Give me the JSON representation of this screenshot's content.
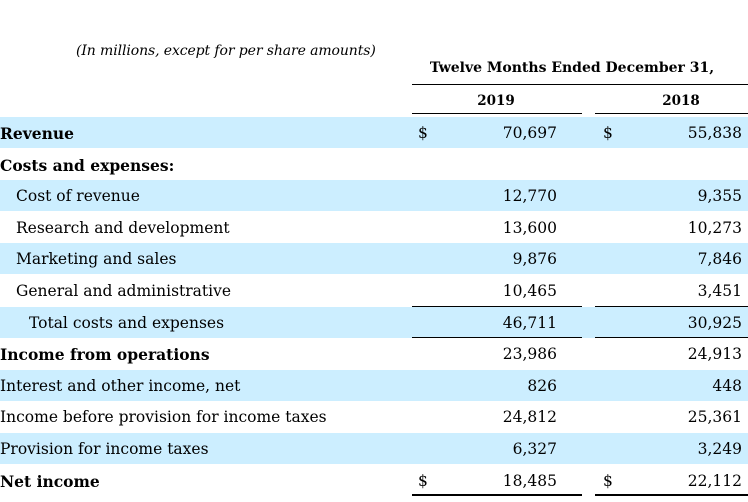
{
  "caption": "(In millions, except for per share amounts)",
  "period_header": "Twelve Months Ended December 31,",
  "years": [
    "2019",
    "2018"
  ],
  "rows": [
    {
      "label": "Revenue",
      "bold": true,
      "indent": 0,
      "shaded": true,
      "dollar": true,
      "v2019": "70,697",
      "v2018": "55,838"
    },
    {
      "label": "Costs and expenses:",
      "bold": true,
      "indent": 0,
      "shaded": false,
      "dollar": false,
      "v2019": "",
      "v2018": ""
    },
    {
      "label": "Cost of revenue",
      "bold": false,
      "indent": 1,
      "shaded": true,
      "dollar": false,
      "v2019": "12,770",
      "v2018": "9,355"
    },
    {
      "label": "Research and development",
      "bold": false,
      "indent": 1,
      "shaded": false,
      "dollar": false,
      "v2019": "13,600",
      "v2018": "10,273"
    },
    {
      "label": "Marketing and sales",
      "bold": false,
      "indent": 1,
      "shaded": true,
      "dollar": false,
      "v2019": "9,876",
      "v2018": "7,846"
    },
    {
      "label": "General and administrative",
      "bold": false,
      "indent": 1,
      "shaded": false,
      "dollar": false,
      "v2019": "10,465",
      "v2018": "3,451"
    },
    {
      "label": "Total costs and expenses",
      "bold": false,
      "indent": 2,
      "shaded": true,
      "dollar": false,
      "v2019": "46,711",
      "v2018": "30,925"
    },
    {
      "label": "Income from operations",
      "bold": true,
      "indent": 0,
      "shaded": false,
      "dollar": false,
      "v2019": "23,986",
      "v2018": "24,913"
    },
    {
      "label": "Interest and other income, net",
      "bold": false,
      "indent": 0,
      "shaded": true,
      "dollar": false,
      "v2019": "826",
      "v2018": "448"
    },
    {
      "label": "Income before provision for income taxes",
      "bold": false,
      "indent": 0,
      "shaded": false,
      "dollar": false,
      "v2019": "24,812",
      "v2018": "25,361"
    },
    {
      "label": "Provision for income taxes",
      "bold": false,
      "indent": 0,
      "shaded": true,
      "dollar": false,
      "v2019": "6,327",
      "v2018": "3,249"
    },
    {
      "label": "Net income",
      "bold": true,
      "indent": 0,
      "shaded": false,
      "dollar": true,
      "v2019": "18,485",
      "v2018": "22,112"
    }
  ],
  "currency_symbol": "$"
}
